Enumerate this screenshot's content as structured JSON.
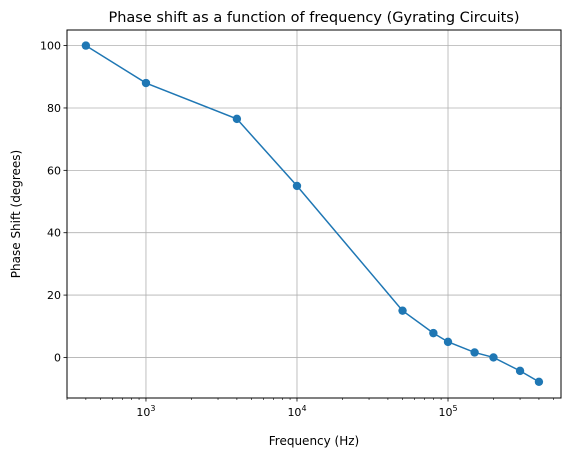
{
  "chart_data": {
    "type": "line",
    "title": "Phase shift as a function of frequency (Gyrating Circuits)",
    "xlabel": "Frequency (Hz)",
    "ylabel": "Phase Shift (degrees)",
    "xscale": "log",
    "xlim": [
      300,
      560000
    ],
    "ylim": [
      -13,
      105
    ],
    "grid": true,
    "x_ticks": [
      {
        "value": 1000,
        "base": "10",
        "exp": "3"
      },
      {
        "value": 10000,
        "base": "10",
        "exp": "4"
      },
      {
        "value": 100000,
        "base": "10",
        "exp": "5"
      }
    ],
    "y_ticks": [
      0,
      20,
      40,
      60,
      80,
      100
    ],
    "series": [
      {
        "color": "#1f77b4",
        "marker": "circle",
        "x": [
          400,
          1000,
          4000,
          10000,
          50000,
          80000,
          100000,
          150000,
          200000,
          300000,
          400000
        ],
        "y": [
          100,
          88,
          76.5,
          55,
          15,
          7.8,
          5,
          1.6,
          0,
          -4.3,
          -7.8
        ]
      }
    ]
  }
}
